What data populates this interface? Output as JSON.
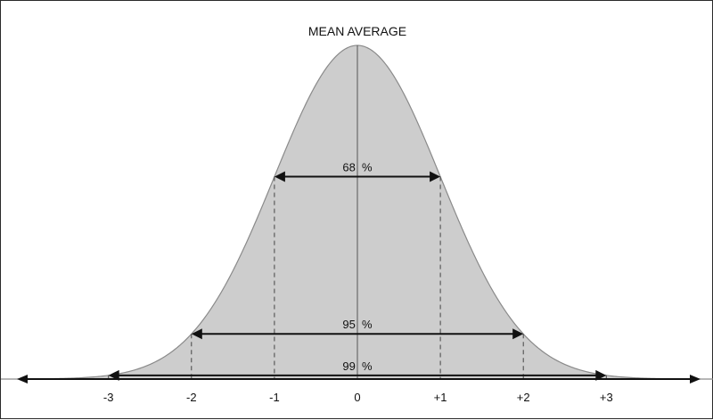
{
  "chart_data": {
    "type": "area",
    "title": "MEAN AVERAGE",
    "xlabel": "",
    "ylabel": "",
    "xlim": [
      -4.3,
      4.3
    ],
    "x_ticks": [
      {
        "value": -3,
        "label": "-3"
      },
      {
        "value": -2,
        "label": "-2"
      },
      {
        "value": -1,
        "label": "-1"
      },
      {
        "value": 0,
        "label": "0"
      },
      {
        "value": 1,
        "label": "+1"
      },
      {
        "value": 2,
        "label": "+2"
      },
      {
        "value": 3,
        "label": "+3"
      }
    ],
    "curve": {
      "distribution": "normal",
      "mean": 0,
      "sd": 1
    },
    "intervals": [
      {
        "from": -1,
        "to": 1,
        "label": "68  %"
      },
      {
        "from": -2,
        "to": 2,
        "label": "95  %"
      },
      {
        "from": -3,
        "to": 3,
        "label": "99  %"
      }
    ],
    "grid": false,
    "colors": {
      "fill": "#cdcdcd",
      "curve_stroke": "#8a8a8a",
      "lines": "#111111",
      "dashes": "#444444"
    }
  }
}
